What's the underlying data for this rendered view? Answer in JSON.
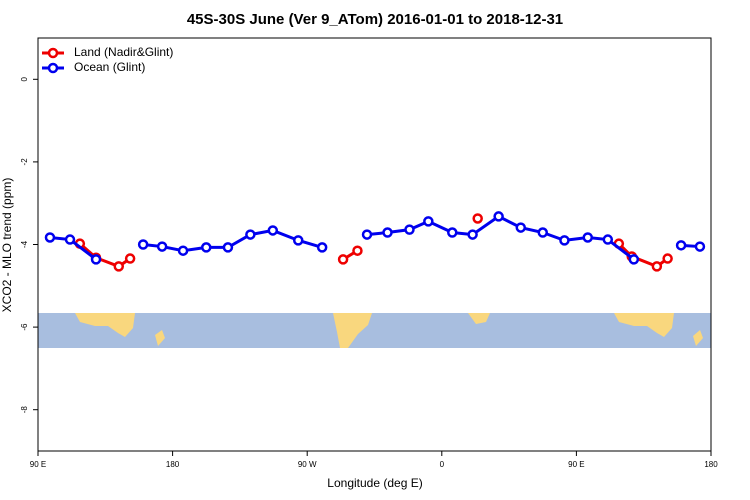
{
  "chart_data": {
    "type": "line",
    "title": "45S-30S June (Ver 9_ATom)   2016-01-01 to 2018-12-31",
    "x_label": "Longitude (deg E)",
    "y_label": "XCO2 - MLO trend (ppm)",
    "xlim": [
      90,
      540
    ],
    "ylim": [
      -9,
      1
    ],
    "xticks": [
      {
        "value": 90,
        "label": "90 E"
      },
      {
        "value": 180,
        "label": "180"
      },
      {
        "value": 270,
        "label": "90 W"
      },
      {
        "value": 360,
        "label": "0"
      },
      {
        "value": 450,
        "label": "90 E"
      },
      {
        "value": 540,
        "label": "180"
      }
    ],
    "yticks": [
      0,
      -2,
      -4,
      -6,
      -8
    ],
    "legend": "top-left",
    "series": [
      {
        "name": "Land (Nadir&Glint)",
        "color": "#ee0000",
        "x": [
          118,
          128.8,
          144,
          151.6,
          null,
          294,
          303.6,
          null,
          384,
          null,
          478.4,
          487,
          503.8,
          511
        ],
        "values": [
          -3.98,
          -4.32,
          -4.53,
          -4.34,
          null,
          -4.36,
          -4.15,
          null,
          -3.37,
          null,
          -3.98,
          -4.29,
          -4.53,
          -4.34
        ]
      },
      {
        "name": "Ocean (Glint)",
        "color": "#0000ee",
        "x": [
          98,
          111.4,
          128.8,
          null,
          160.3,
          173,
          187,
          202.5,
          217,
          232,
          247,
          264,
          280,
          null,
          310,
          323.7,
          338.4,
          351,
          367,
          380.6,
          398,
          412.8,
          427.5,
          442,
          457.6,
          471,
          488.4,
          null,
          520,
          532.6
        ],
        "values": [
          -3.83,
          -3.88,
          -4.36,
          null,
          -4.0,
          -4.05,
          -4.15,
          -4.07,
          -4.07,
          -3.76,
          -3.66,
          -3.9,
          -4.07,
          null,
          -3.76,
          -3.71,
          -3.64,
          -3.44,
          -3.71,
          -3.76,
          -3.32,
          -3.59,
          -3.71,
          -3.9,
          -3.83,
          -3.88,
          -4.36,
          null,
          -4.02,
          -4.05
        ]
      }
    ]
  }
}
